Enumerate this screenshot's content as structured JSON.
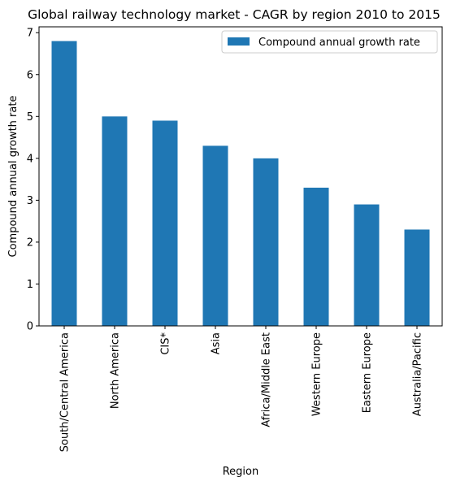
{
  "chart_data": {
    "type": "bar",
    "title": "Global railway technology market - CAGR by region 2010 to 2015",
    "xlabel": "Region",
    "ylabel": "Compound annual growth rate",
    "categories": [
      "South/Central America",
      "North America",
      "CIS*",
      "Asia",
      "Africa/Middle East",
      "Western Europe",
      "Eastern Europe",
      "Australia/Pacific"
    ],
    "series": [
      {
        "name": "Compound annual growth rate",
        "values": [
          6.8,
          5.0,
          4.9,
          4.3,
          4.0,
          3.3,
          2.9,
          2.3
        ],
        "color": "#1f77b4"
      }
    ],
    "ylim": [
      0,
      7.14
    ],
    "yticks": [
      0,
      1,
      2,
      3,
      4,
      5,
      6,
      7
    ],
    "grid": false,
    "legend_position": "top-right"
  }
}
